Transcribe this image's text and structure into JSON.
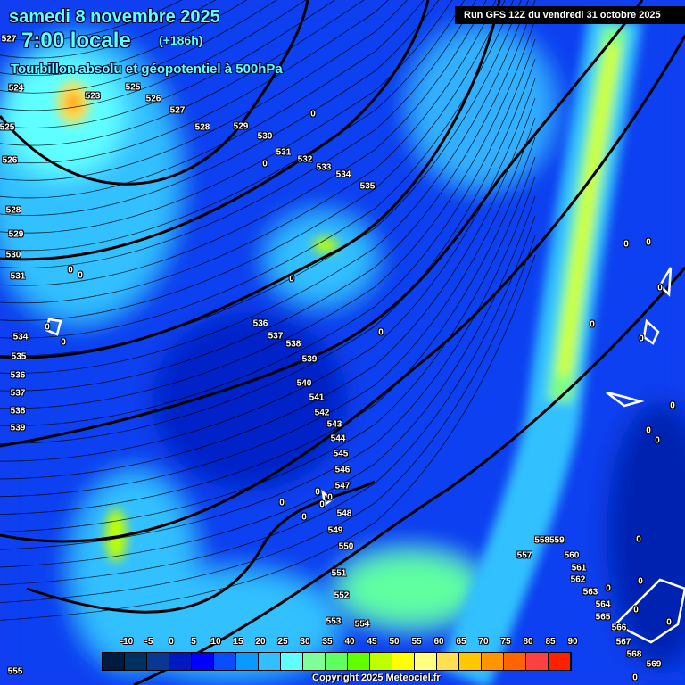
{
  "header": {
    "date": "samedi 8 novembre 2025",
    "time": "7:00 locale",
    "lead": "(+186h)",
    "product": "Tourbillon absolu et géopotentiel à 500hPa",
    "run": "Run GFS 12Z du vendredi 31 octobre 2025"
  },
  "contour_labels": [
    "527",
    "524",
    "523",
    "525",
    "526",
    "527",
    "528",
    "529",
    "530",
    "531",
    "532",
    "533",
    "534",
    "535",
    "525",
    "526",
    "528",
    "529",
    "530",
    "531",
    "534",
    "535",
    "536",
    "537",
    "538",
    "539",
    "536",
    "537",
    "538",
    "539",
    "540",
    "541",
    "542",
    "543",
    "544",
    "545",
    "546",
    "547",
    "548",
    "549",
    "550",
    "551",
    "552",
    "553",
    "554",
    "555",
    "557",
    "558559",
    "560",
    "561",
    "562",
    "563",
    "564",
    "565",
    "566",
    "567",
    "568",
    "569"
  ],
  "vorticity_zero_label": "0",
  "colorbar": {
    "ticks": [
      "-10",
      "-5",
      "0",
      "5",
      "10",
      "15",
      "20",
      "25",
      "30",
      "35",
      "40",
      "45",
      "50",
      "55",
      "60",
      "65",
      "70",
      "75",
      "80",
      "85",
      "90"
    ],
    "colors": [
      "#001a40",
      "#003060",
      "#0a3890",
      "#0018c0",
      "#0000ff",
      "#0a4cff",
      "#0a9aff",
      "#30c0ff",
      "#60ffff",
      "#80ff98",
      "#60ff60",
      "#60ff00",
      "#c0ff00",
      "#ffff00",
      "#ffff80",
      "#ffe050",
      "#ffc800",
      "#ff9600",
      "#ff6400",
      "#ff4040",
      "#ff2000"
    ]
  },
  "copyright": "Copyright 2025 Meteociel.fr"
}
